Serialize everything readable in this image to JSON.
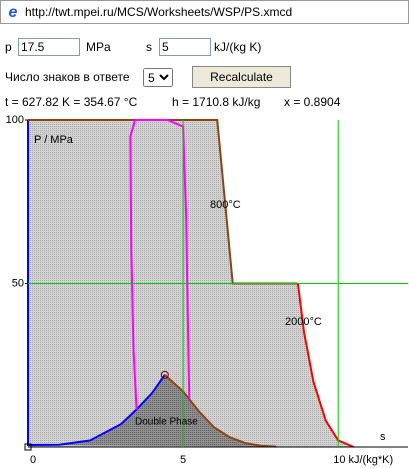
{
  "address_bar": {
    "url": "http://twt.mpei.ru/MCS/Worksheets/WSP/PS.xmcd"
  },
  "form": {
    "p_label": "p",
    "p_value": "17.5",
    "p_unit": "MPa",
    "s_label": "s",
    "s_value": "5",
    "s_unit": "kJ/(kg K)",
    "digits_label": "Число знаков в ответе",
    "digits_value": "5",
    "button": "Recalculate"
  },
  "results": {
    "t": "t = 627.82 K = 354.67 °C",
    "h": "h = 1710.8 kJ/kg",
    "x": "x = 0.8904"
  },
  "chart_data": {
    "type": "line",
    "y_label": "P / MPa",
    "x_label": "s",
    "annotations": [
      "800°C",
      "2000°C",
      "Double Phase"
    ],
    "xlim": [
      0,
      12.25
    ],
    "ylim": [
      0,
      100
    ],
    "xticks": [
      0,
      5,
      {
        "value": 10,
        "label": "10 kJ/(kg*K)"
      }
    ],
    "yticks": [
      50,
      100
    ],
    "grid": true,
    "grid_color": "#00cc00",
    "series": [
      {
        "color": "#0000ff",
        "x": [
          0,
          0,
          1,
          2,
          3,
          3.5,
          4,
          4.41
        ],
        "y": [
          100,
          0.6,
          0.7,
          2,
          7,
          11.5,
          16.5,
          22.06
        ]
      },
      {
        "color": "#8b4513",
        "x": [
          4.41,
          5,
          5.5,
          6,
          6.5,
          7,
          7.5,
          8
        ],
        "y": [
          22.06,
          17,
          11,
          6,
          3,
          1.2,
          0.4,
          0.1
        ]
      },
      {
        "color": "#8b4513",
        "x": [
          0,
          6.1,
          6.6,
          8.7
        ],
        "y": [
          100,
          100,
          50,
          50
        ]
      },
      {
        "color": "#ff0000",
        "x": [
          8.7,
          8.9,
          9.2,
          9.6,
          10,
          10.5
        ],
        "y": [
          50,
          35,
          20,
          8,
          2,
          0
        ]
      },
      {
        "color": "#ff00ff",
        "x": [
          3.5,
          3.4,
          3.33,
          3.3,
          3.45,
          4.5,
          5.0,
          5.1,
          5.15,
          5.2
        ],
        "y": [
          11.5,
          30,
          60,
          95,
          100,
          100,
          98,
          70,
          40,
          14.6
        ]
      }
    ],
    "critical_point": {
      "x": 4.41,
      "y": 22.06
    }
  }
}
